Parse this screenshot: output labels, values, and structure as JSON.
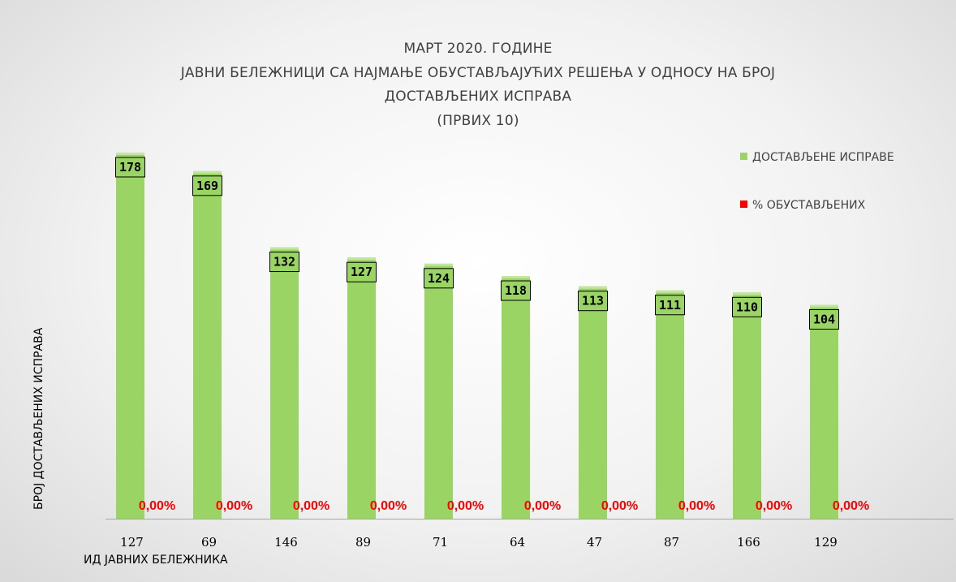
{
  "chart_data": {
    "type": "bar",
    "title": [
      "МАРТ 2020. ГОДИНЕ",
      "ЈАВНИ БЕЛЕЖНИЦИ СА НАЈМАЊЕ ОБУСТАВЉАЈУЋИХ РЕШЕЊА У ОДНОСУ НА БРОЈ",
      "ДОСТАВЉЕНИХ ИСПРАВА",
      "(ПРВИХ 10)"
    ],
    "xlabel": "ИД ЈАВНИХ БЕЛЕЖНИКА",
    "ylabel": "БРОЈ ДОСТАВЉЕНИХ ИСПРАВА",
    "categories": [
      "127",
      "69",
      "146",
      "89",
      "71",
      "64",
      "47",
      "87",
      "166",
      "129"
    ],
    "series": [
      {
        "name": "ДОСТАВЉЕНЕ ИСПРАВЕ",
        "color": "#9ad464",
        "values": [
          178,
          169,
          132,
          127,
          124,
          118,
          113,
          111,
          110,
          104
        ],
        "labels": [
          "178",
          "169",
          "132",
          "127",
          "124",
          "118",
          "113",
          "111",
          "110",
          "104"
        ]
      },
      {
        "name": "% ОБУСТАВЉЕНИХ",
        "color": "#ff0000",
        "values": [
          0,
          0,
          0,
          0,
          0,
          0,
          0,
          0,
          0,
          0
        ],
        "labels": [
          "0,00%",
          "0,00%",
          "0,00%",
          "0,00%",
          "0,00%",
          "0,00%",
          "0,00%",
          "0,00%",
          "0,00%",
          "0,00%"
        ]
      }
    ],
    "ylim": [
      0,
      178
    ],
    "grid": false,
    "legend": "top-right"
  }
}
